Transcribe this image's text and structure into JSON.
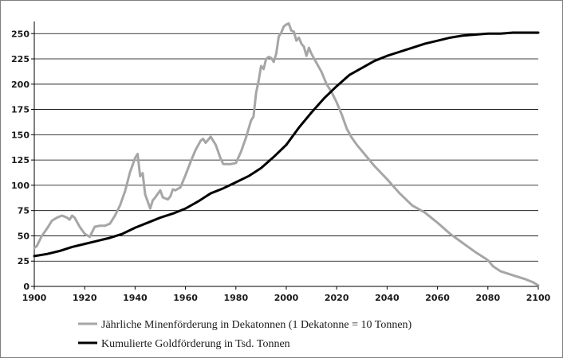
{
  "chart_data": {
    "type": "line",
    "title": "",
    "xlabel": "",
    "ylabel": "",
    "xlim": [
      1900,
      2100
    ],
    "ylim": [
      0,
      262
    ],
    "xticks": [
      1900,
      1920,
      1940,
      1960,
      1980,
      2000,
      2020,
      2040,
      2060,
      2080,
      2100
    ],
    "yticks": [
      0,
      25,
      50,
      75,
      100,
      125,
      150,
      175,
      200,
      225,
      250
    ],
    "grid": "horizontal",
    "legend": "bottom",
    "series": [
      {
        "name": "Jährliche Minenförderung in Dekatonnen (1 Dekatonne = 10 Tonnen)",
        "color": "#a6a6a6",
        "x": [
          1900,
          1901,
          1903,
          1905,
          1907,
          1909,
          1911,
          1913,
          1914,
          1915,
          1916,
          1918,
          1920,
          1922,
          1924,
          1926,
          1928,
          1930,
          1932,
          1934,
          1936,
          1938,
          1940,
          1941,
          1942,
          1943,
          1944,
          1946,
          1947,
          1948,
          1950,
          1951,
          1952,
          1953,
          1954,
          1955,
          1956,
          1958,
          1960,
          1962,
          1964,
          1966,
          1967,
          1968,
          1970,
          1972,
          1974,
          1975,
          1976,
          1978,
          1980,
          1982,
          1984,
          1986,
          1987,
          1988,
          1989,
          1990,
          1991,
          1992,
          1993,
          1994,
          1995,
          1996,
          1997,
          1998,
          1999,
          2000,
          2001,
          2002,
          2003,
          2004,
          2005,
          2006,
          2007,
          2008,
          2009,
          2010,
          2012,
          2014,
          2016,
          2018,
          2020,
          2022,
          2024,
          2026,
          2028,
          2030,
          2035,
          2040,
          2045,
          2050,
          2055,
          2060,
          2065,
          2070,
          2075,
          2080,
          2082,
          2085,
          2090,
          2095,
          2098,
          2100
        ],
        "values": [
          38,
          40,
          50,
          57,
          65,
          68,
          70,
          68,
          66,
          70,
          68,
          59,
          52,
          49,
          59,
          60,
          60,
          62,
          70,
          80,
          94,
          113,
          127,
          131,
          109,
          112,
          91,
          77,
          85,
          88,
          95,
          88,
          87,
          86,
          89,
          96,
          95,
          98,
          110,
          123,
          135,
          144,
          146,
          142,
          148,
          140,
          126,
          121,
          121,
          121,
          122,
          133,
          147,
          164,
          168,
          191,
          203,
          218,
          215,
          225,
          227,
          226,
          222,
          230,
          247,
          251,
          257,
          259,
          260,
          253,
          252,
          243,
          246,
          240,
          237,
          228,
          236,
          230,
          221,
          212,
          200,
          192,
          182,
          170,
          156,
          147,
          140,
          134,
          119,
          106,
          92,
          80,
          73,
          63,
          52,
          43,
          34,
          26,
          20,
          15,
          11,
          7,
          4,
          1
        ],
        "value_unit": "Dekatonnen"
      },
      {
        "name": "Kumulierte Goldförderung in Tsd. Tonnen",
        "color": "#000000",
        "x": [
          1900,
          1905,
          1910,
          1915,
          1920,
          1925,
          1930,
          1935,
          1940,
          1945,
          1950,
          1955,
          1960,
          1965,
          1970,
          1975,
          1980,
          1985,
          1990,
          1995,
          2000,
          2005,
          2010,
          2015,
          2020,
          2025,
          2030,
          2035,
          2040,
          2045,
          2050,
          2055,
          2060,
          2065,
          2070,
          2075,
          2080,
          2085,
          2090,
          2095,
          2100
        ],
        "values": [
          30,
          32,
          35,
          39,
          42,
          45,
          48,
          52,
          58,
          63,
          68,
          72,
          77,
          84,
          92,
          97,
          103,
          109,
          117,
          128,
          140,
          157,
          172,
          186,
          198,
          209,
          216,
          223,
          228,
          232,
          236,
          240,
          243,
          246,
          248,
          249,
          250,
          250,
          251,
          251,
          251
        ],
        "value_unit": "Tsd. Tonnen"
      }
    ]
  }
}
